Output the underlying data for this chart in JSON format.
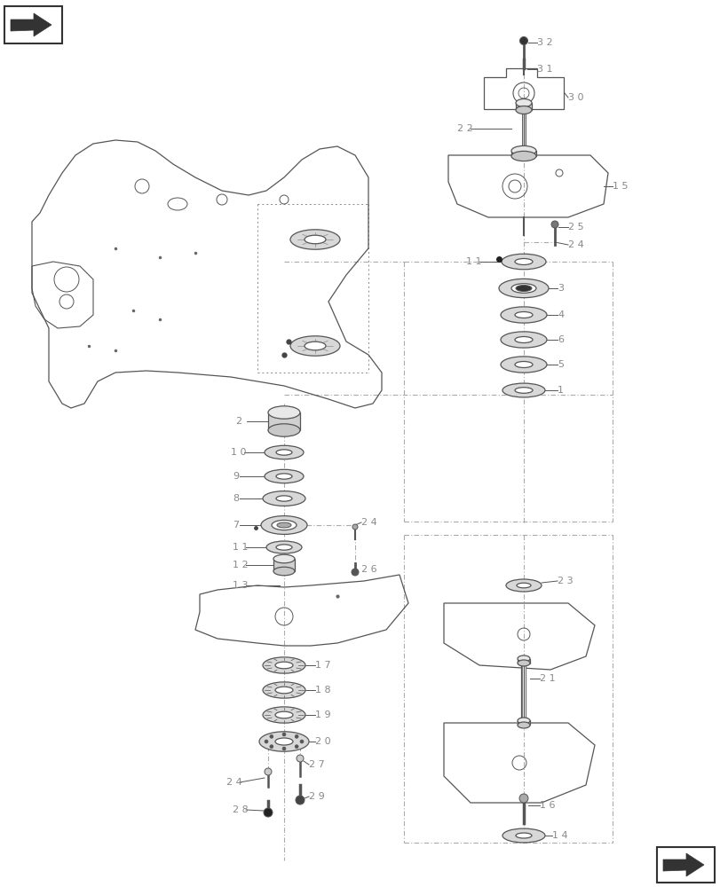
{
  "bg_color": "#ffffff",
  "lc": "#555555",
  "labelc": "#888888",
  "dashdotc": "#aaaaaa",
  "fig_width": 8.12,
  "fig_height": 10.0
}
